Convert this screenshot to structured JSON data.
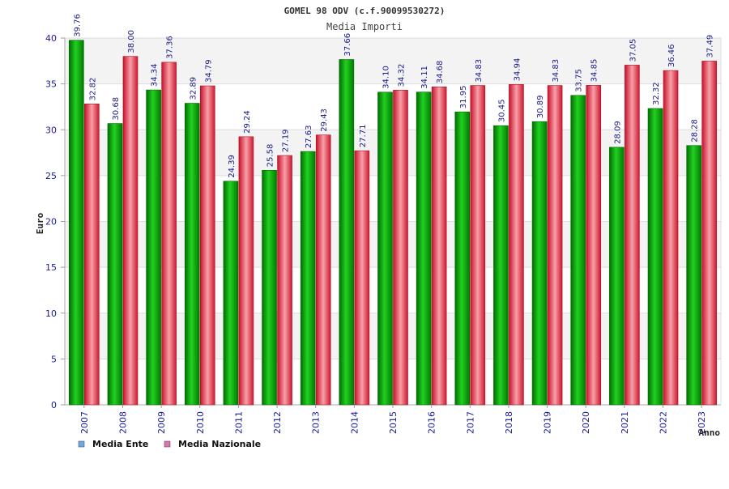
{
  "chart_data": {
    "type": "bar",
    "title": "GOMEL 98 ODV (c.f.90099530272)",
    "subtitle": "Media Importi",
    "xlabel": "Anno",
    "ylabel": "Euro",
    "ylim": [
      0,
      40
    ],
    "yticks": [
      0,
      5,
      10,
      15,
      20,
      25,
      30,
      35,
      40
    ],
    "grid": true,
    "legend_position": "bottom-left",
    "categories": [
      "2007",
      "2008",
      "2009",
      "2010",
      "2011",
      "2012",
      "2013",
      "2014",
      "2015",
      "2016",
      "2017",
      "2018",
      "2019",
      "2020",
      "2021",
      "2022",
      "2023"
    ],
    "series": [
      {
        "name": "Media Ente",
        "color": "#00b000",
        "legend_color": "#6aaae8",
        "values": [
          39.76,
          30.68,
          34.34,
          32.89,
          24.39,
          25.58,
          27.63,
          37.66,
          34.1,
          34.11,
          31.95,
          30.45,
          30.89,
          33.75,
          28.09,
          32.32,
          28.28
        ],
        "labels": [
          "39.76",
          "30.68",
          "34.34",
          "32.89",
          "24.39",
          "25.58",
          "27.63",
          "37.66",
          "34.10",
          "34.11",
          "31.95",
          "30.45",
          "30.89",
          "33.75",
          "28.09",
          "32.32",
          "28.28"
        ]
      },
      {
        "name": "Media Nazionale",
        "color": "#e02030",
        "legend_color": "#e070b0",
        "values": [
          32.82,
          38.0,
          37.36,
          34.79,
          29.24,
          27.19,
          29.43,
          27.71,
          34.32,
          34.68,
          34.83,
          34.94,
          34.83,
          34.85,
          37.05,
          36.46,
          37.49
        ],
        "labels": [
          "32.82",
          "38.00",
          "37.36",
          "34.79",
          "29.24",
          "27.19",
          "29.43",
          "27.71",
          "34.32",
          "34.68",
          "34.83",
          "34.94",
          "34.83",
          "34.85",
          "37.05",
          "36.46",
          "37.49"
        ]
      }
    ]
  }
}
